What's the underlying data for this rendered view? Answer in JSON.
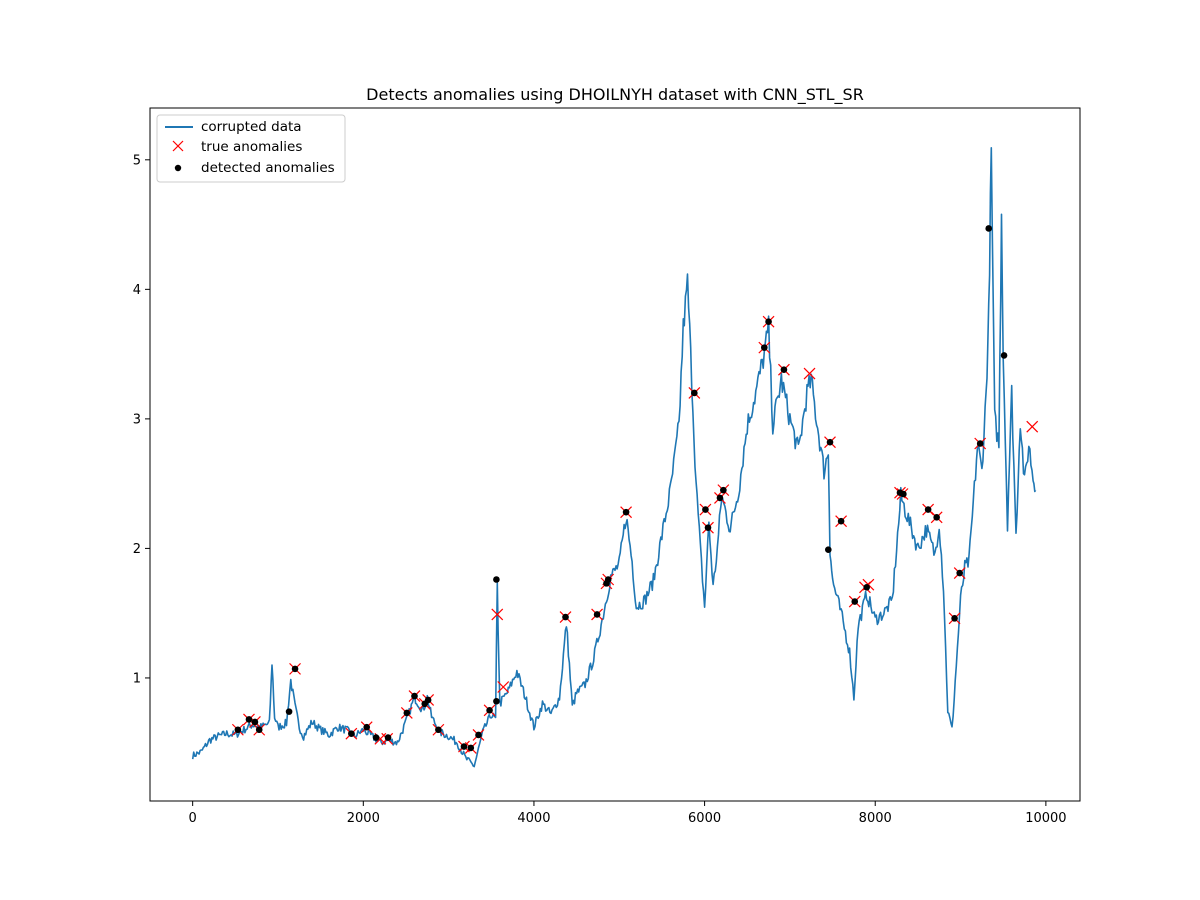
{
  "chart_data": {
    "type": "line",
    "title": "Detects anomalies using DHOILNYH dataset with CNN_STL_SR",
    "xlabel": "",
    "ylabel": "",
    "xlim": [
      -500,
      10400
    ],
    "ylim": [
      0.05,
      5.4
    ],
    "x_ticks": [
      0,
      2000,
      4000,
      6000,
      8000,
      10000
    ],
    "x_tick_labels": [
      "0",
      "2000",
      "4000",
      "6000",
      "8000",
      "10000"
    ],
    "y_ticks": [
      1,
      2,
      3,
      4,
      5
    ],
    "y_tick_labels": [
      "1",
      "2",
      "3",
      "4",
      "5"
    ],
    "grid": false,
    "legend_position": "top-left",
    "colors": {
      "line": "#1f77b4",
      "true_anomaly": "#ff0000",
      "detected_anomaly": "#000000"
    },
    "series": [
      {
        "name": "corrupted data",
        "kind": "line",
        "x": [
          0,
          100,
          200,
          300,
          400,
          500,
          600,
          700,
          800,
          900,
          930,
          960,
          1000,
          1100,
          1150,
          1200,
          1250,
          1300,
          1400,
          1500,
          1600,
          1700,
          1800,
          1900,
          2000,
          2100,
          2200,
          2300,
          2400,
          2500,
          2600,
          2700,
          2750,
          2800,
          2900,
          3000,
          3100,
          3200,
          3300,
          3400,
          3500,
          3550,
          3570,
          3600,
          3700,
          3800,
          3900,
          4000,
          4100,
          4200,
          4300,
          4380,
          4450,
          4500,
          4600,
          4700,
          4800,
          4900,
          5000,
          5080,
          5150,
          5200,
          5300,
          5400,
          5500,
          5600,
          5700,
          5750,
          5800,
          5850,
          5900,
          5950,
          6000,
          6050,
          6100,
          6150,
          6200,
          6300,
          6400,
          6500,
          6600,
          6700,
          6750,
          6800,
          6900,
          7000,
          7100,
          7200,
          7250,
          7300,
          7400,
          7450,
          7470,
          7500,
          7600,
          7700,
          7750,
          7800,
          7900,
          8000,
          8100,
          8200,
          8300,
          8400,
          8500,
          8600,
          8700,
          8750,
          8800,
          8850,
          8900,
          8950,
          9000,
          9050,
          9100,
          9200,
          9250,
          9300,
          9330,
          9360,
          9400,
          9450,
          9480,
          9500,
          9550,
          9600,
          9650,
          9700,
          9750,
          9800,
          9850,
          9880
        ],
        "y": [
          0.4,
          0.43,
          0.52,
          0.55,
          0.57,
          0.56,
          0.6,
          0.64,
          0.62,
          0.65,
          1.12,
          0.7,
          0.62,
          0.65,
          0.98,
          0.78,
          0.62,
          0.55,
          0.66,
          0.6,
          0.56,
          0.62,
          0.6,
          0.55,
          0.6,
          0.55,
          0.5,
          0.52,
          0.5,
          0.66,
          0.85,
          0.75,
          0.85,
          0.7,
          0.58,
          0.55,
          0.5,
          0.38,
          0.32,
          0.58,
          0.72,
          0.68,
          1.7,
          0.8,
          0.9,
          1.05,
          0.85,
          0.62,
          0.8,
          0.72,
          0.85,
          1.42,
          0.78,
          0.88,
          0.95,
          1.15,
          1.45,
          1.78,
          1.88,
          2.25,
          1.9,
          1.55,
          1.6,
          1.75,
          2.1,
          2.45,
          2.95,
          3.7,
          4.05,
          3.3,
          2.5,
          2.0,
          1.55,
          2.2,
          1.7,
          2.0,
          2.4,
          2.15,
          2.45,
          2.95,
          3.2,
          3.5,
          3.7,
          2.95,
          3.3,
          3.0,
          2.75,
          3.2,
          3.3,
          3.05,
          2.6,
          2.75,
          2.0,
          1.75,
          1.5,
          1.2,
          0.85,
          1.4,
          1.65,
          1.45,
          1.5,
          1.6,
          2.4,
          2.2,
          2.0,
          2.15,
          1.95,
          2.2,
          1.7,
          0.75,
          0.6,
          1.1,
          1.6,
          1.85,
          1.9,
          2.8,
          2.6,
          3.2,
          3.8,
          5.05,
          3.0,
          2.8,
          4.6,
          3.5,
          2.2,
          3.2,
          2.1,
          3.0,
          2.5,
          2.8,
          2.55,
          2.45
        ]
      },
      {
        "name": "true anomalies",
        "kind": "scatter",
        "marker": "x",
        "x": [
          530,
          660,
          730,
          780,
          1200,
          1860,
          2040,
          2200,
          2280,
          2510,
          2600,
          2720,
          2760,
          2880,
          3180,
          3260,
          3350,
          3480,
          3570,
          3640,
          4370,
          4740,
          4850,
          4870,
          5080,
          5880,
          6010,
          6040,
          6180,
          6220,
          6700,
          6750,
          6930,
          7230,
          7470,
          7600,
          7760,
          7880,
          7920,
          8290,
          8320,
          8620,
          8720,
          8930,
          8990,
          9230,
          9840
        ],
        "y": [
          0.6,
          0.68,
          0.66,
          0.6,
          1.07,
          0.57,
          0.62,
          0.53,
          0.53,
          0.73,
          0.86,
          0.8,
          0.83,
          0.6,
          0.47,
          0.46,
          0.56,
          0.75,
          1.49,
          0.93,
          1.47,
          1.49,
          1.73,
          1.76,
          2.28,
          3.2,
          2.3,
          2.16,
          2.39,
          2.45,
          3.55,
          3.75,
          3.38,
          3.35,
          2.82,
          2.21,
          1.59,
          1.7,
          1.72,
          2.43,
          2.42,
          2.3,
          2.24,
          1.46,
          1.81,
          2.81,
          2.94
        ]
      },
      {
        "name": "detected anomalies",
        "kind": "scatter",
        "marker": "o",
        "x": [
          530,
          660,
          730,
          780,
          1130,
          1200,
          1860,
          2040,
          2150,
          2290,
          2510,
          2600,
          2720,
          2760,
          2880,
          3180,
          3260,
          3350,
          3480,
          3560,
          3560,
          4370,
          4740,
          4850,
          4870,
          5080,
          5880,
          6010,
          6040,
          6180,
          6220,
          6700,
          6750,
          6930,
          7450,
          7470,
          7600,
          7760,
          7900,
          8290,
          8330,
          8620,
          8720,
          8930,
          8990,
          9230,
          9330,
          9510
        ],
        "y": [
          0.6,
          0.68,
          0.66,
          0.6,
          0.74,
          1.07,
          0.57,
          0.62,
          0.54,
          0.54,
          0.73,
          0.86,
          0.8,
          0.83,
          0.6,
          0.47,
          0.46,
          0.56,
          0.75,
          0.82,
          1.76,
          1.47,
          1.49,
          1.73,
          1.76,
          2.28,
          3.2,
          2.3,
          2.16,
          2.39,
          2.45,
          3.55,
          3.75,
          3.38,
          1.99,
          2.82,
          2.21,
          1.59,
          1.7,
          2.43,
          2.42,
          2.3,
          2.24,
          1.46,
          1.81,
          2.81,
          4.47,
          3.49
        ]
      }
    ]
  }
}
